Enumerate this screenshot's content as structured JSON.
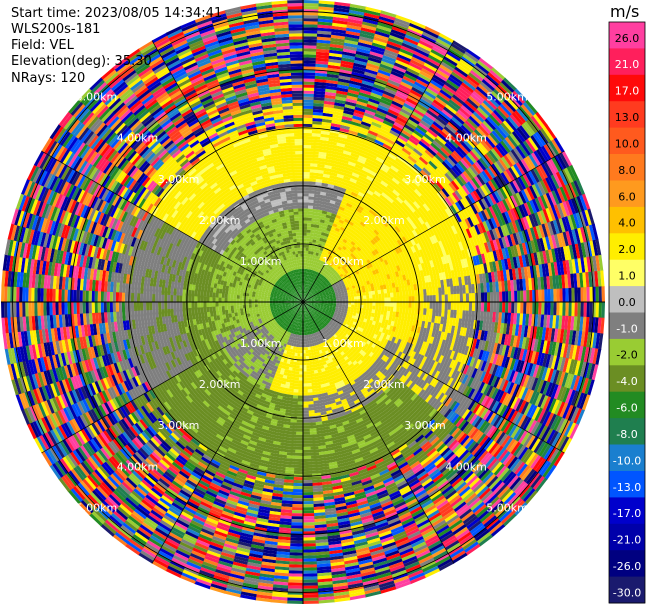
{
  "header": {
    "start_time": "Start time: 2023/08/05 14:34:41",
    "instrument": "WLS200s-181",
    "field": "Field: VEL",
    "elevation": "Elevation(deg): 35.30",
    "nrays": "NRays: 120"
  },
  "chart_data": {
    "type": "heatmap",
    "projection": "polar-ppi",
    "field": "VEL",
    "units": "m/s",
    "nrays": 120,
    "elevation_deg": 35.3,
    "range_max_km": 5.2,
    "range_rings_km": [
      1,
      2,
      3,
      4,
      5
    ],
    "range_ring_labels": [
      "1.00km",
      "2.00km",
      "3.00km",
      "4.00km",
      "5.00km"
    ],
    "colorbar": {
      "title": "m/s",
      "ticks": [
        "26.0",
        "21.0",
        "17.0",
        "13.0",
        "10.0",
        "8.0",
        "6.0",
        "4.0",
        "2.0",
        "1.0",
        "0.0",
        "-1.0",
        "-2.0",
        "-4.0",
        "-6.0",
        "-8.0",
        "-10.0",
        "-13.0",
        "-17.0",
        "-21.0",
        "-26.0",
        "-30.0"
      ],
      "colors": [
        "#ff3fa0",
        "#ff1f5c",
        "#ff0a0a",
        "#ff3b1f",
        "#ff5a1e",
        "#ff7a1e",
        "#ff9a1e",
        "#ffc000",
        "#ffee00",
        "#ffff66",
        "#bfbfbf",
        "#7f7f7f",
        "#99cc33",
        "#6b8e23",
        "#228b22",
        "#1f7f4f",
        "#1a7fcf",
        "#0055ff",
        "#0000cc",
        "#0000aa",
        "#000080",
        "#1a1a6e"
      ]
    },
    "pattern": {
      "inner_core_km": 0.5,
      "inner_core": "dark green",
      "clean_region_km": 3.0,
      "noise_region": "random multicolor beyond ~3.3 km",
      "dominant_positive": "yellow (upper half / center-south)",
      "dominant_negative": "olive / yellow-green (lower-left)",
      "near_zero": "gray ring near 1–2 km"
    }
  }
}
